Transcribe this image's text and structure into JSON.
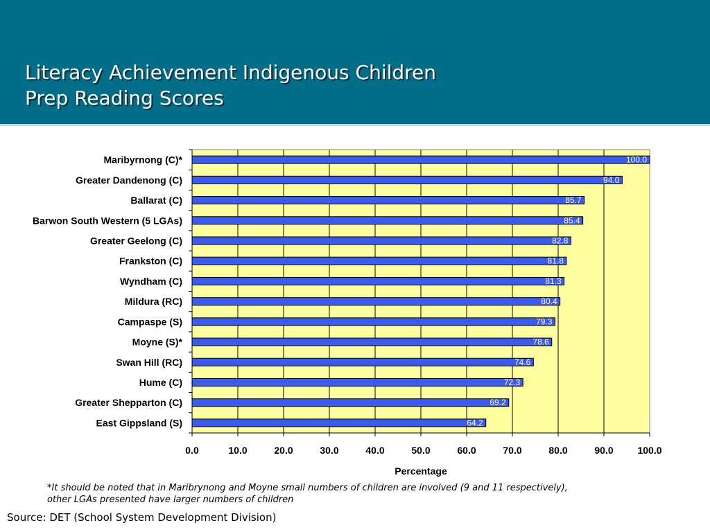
{
  "header": {
    "title_line1": "Literacy Achievement Indigenous Children",
    "title_line2": "Prep Reading Scores"
  },
  "colors": {
    "header_bg": "#006e88",
    "plot_bg": "#ffff9f",
    "bar_fill": "#3b5bf0",
    "bar_label": "#ffffff"
  },
  "chart_data": {
    "type": "bar",
    "orientation": "horizontal",
    "categories": [
      "Maribyrnong (C)*",
      "Greater Dandenong (C)",
      "Ballarat (C)",
      "Barwon South Western (5 LGAs)",
      "Greater Geelong (C)",
      "Frankston (C)",
      "Wyndham (C)",
      "Mildura (RC)",
      "Campaspe (S)",
      "Moyne (S)*",
      "Swan Hill (RC)",
      "Hume (C)",
      "Greater Shepparton (C)",
      "East Gippsland (S)"
    ],
    "values": [
      100.0,
      94.0,
      85.7,
      85.4,
      82.8,
      81.8,
      81.3,
      80.4,
      79.3,
      78.6,
      74.6,
      72.3,
      69.2,
      64.2
    ],
    "value_labels": [
      "100.0",
      "94.0",
      "85.7",
      "85.4",
      "82.8",
      "81.8",
      "81.3",
      "80.4",
      "79.3",
      "78.6",
      "74.6",
      "72.3",
      "69.2",
      "64.2"
    ],
    "xlabel": "Percentage",
    "ylabel": "",
    "xlim": [
      0,
      100
    ],
    "xticks": [
      "0.0",
      "10.0",
      "20.0",
      "30.0",
      "40.0",
      "50.0",
      "60.0",
      "70.0",
      "80.0",
      "90.0",
      "100.0"
    ],
    "grid": "vertical",
    "legend": "none"
  },
  "footnote": {
    "line1": "*It should be noted that in Maribrynong and Moyne small numbers of children are involved (9 and 11 respectively),",
    "line2": "other LGAs presented have larger numbers of children"
  },
  "source": "Source: DET (School System Development Division)"
}
